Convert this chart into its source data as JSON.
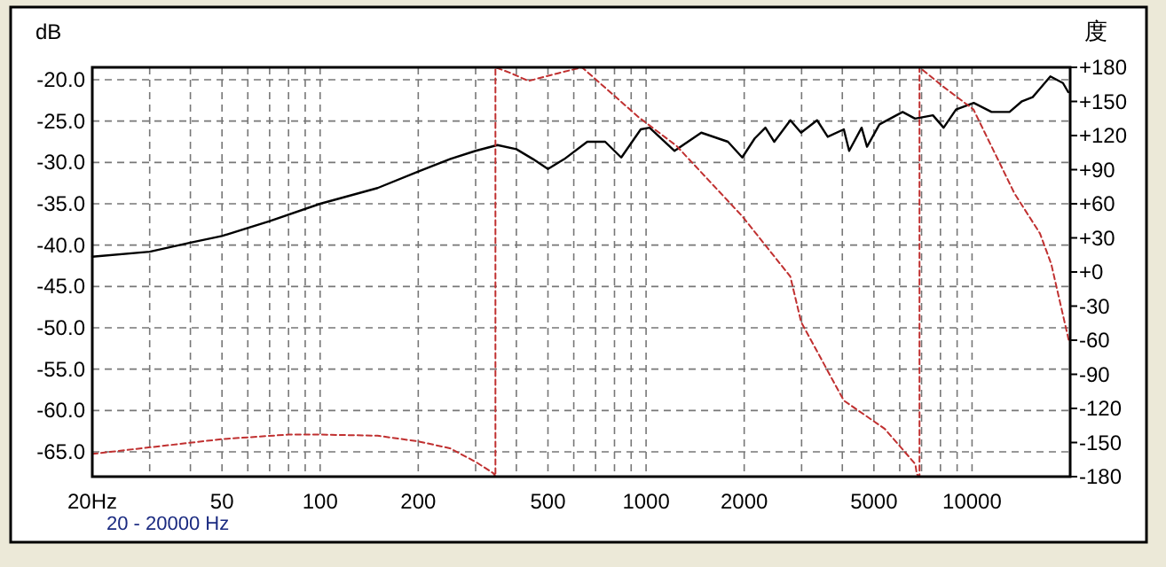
{
  "chart_data": {
    "type": "line",
    "ylabel": "dB",
    "y2label": "度",
    "log": "x",
    "grid": true,
    "xlim": [
      20,
      20000
    ],
    "ylim": [
      -68,
      -18.5
    ],
    "y2lim": [
      -180,
      180
    ],
    "xticks": [
      {
        "value": 20,
        "label": "20Hz"
      },
      {
        "value": 30,
        "label": null
      },
      {
        "value": 40,
        "label": null
      },
      50,
      {
        "value": 60,
        "label": null
      },
      {
        "value": 70,
        "label": null
      },
      {
        "value": 80,
        "label": null
      },
      {
        "value": 90,
        "label": null
      },
      100,
      200,
      {
        "value": 300,
        "label": null
      },
      {
        "value": 400,
        "label": null
      },
      500,
      {
        "value": 600,
        "label": null
      },
      {
        "value": 700,
        "label": null
      },
      {
        "value": 800,
        "label": null
      },
      {
        "value": 900,
        "label": null
      },
      1000,
      2000,
      {
        "value": 3000,
        "label": null
      },
      {
        "value": 4000,
        "label": null
      },
      5000,
      {
        "value": 6000,
        "label": null
      },
      {
        "value": 7000,
        "label": null
      },
      {
        "value": 8000,
        "label": null
      },
      {
        "value": 9000,
        "label": null
      },
      10000
    ],
    "yticks": [
      {
        "value": -20,
        "label": "-20.0"
      },
      {
        "value": -25,
        "label": "-25.0"
      },
      {
        "value": -30,
        "label": "-30.0"
      },
      {
        "value": -35,
        "label": "-35.0"
      },
      {
        "value": -40,
        "label": "-40.0"
      },
      {
        "value": -45,
        "label": "-45.0"
      },
      {
        "value": -50,
        "label": "-50.0"
      },
      {
        "value": -55,
        "label": "-55.0"
      },
      {
        "value": -60,
        "label": "-60.0"
      },
      {
        "value": -65,
        "label": "-65.0"
      }
    ],
    "y2ticks": [
      {
        "value": 180,
        "label": "+180"
      },
      {
        "value": 150,
        "label": "+150"
      },
      {
        "value": 120,
        "label": "+120"
      },
      {
        "value": 90,
        "label": "+90"
      },
      {
        "value": 60,
        "label": "+60"
      },
      {
        "value": 30,
        "label": "+30"
      },
      {
        "value": 0,
        "label": "+0"
      },
      -30,
      -60,
      -90,
      -120,
      -150,
      -180
    ],
    "annotations": [
      "20 - 20000 Hz"
    ],
    "series": [
      {
        "color": "#000000",
        "line_style": "solid",
        "x": [
          20,
          30,
          40,
          50,
          70,
          100,
          150,
          200,
          250,
          300,
          350,
          400,
          450,
          500,
          561,
          660,
          749,
          839,
          963,
          1025,
          1223,
          1477,
          1783,
          1973,
          2154,
          2323,
          2473,
          2771,
          2988,
          3347,
          3608,
          4042,
          4197,
          4584,
          4762,
          5200,
          5610,
          6124,
          6685,
          7586,
          8180,
          8930,
          10120,
          11480,
          13030,
          14230,
          15350,
          16140,
          17390,
          19010,
          19730
        ],
        "values": [
          -41.4,
          -40.8,
          -39.7,
          -38.9,
          -37.1,
          -35.0,
          -33.1,
          -31.1,
          -29.6,
          -28.6,
          -27.9,
          -28.4,
          -29.6,
          -30.8,
          -29.6,
          -27.5,
          -27.5,
          -29.4,
          -26.0,
          -25.8,
          -28.6,
          -26.4,
          -27.5,
          -29.4,
          -27.1,
          -25.8,
          -27.5,
          -24.9,
          -26.4,
          -24.9,
          -26.9,
          -26.0,
          -28.6,
          -25.8,
          -28.1,
          -25.4,
          -24.7,
          -23.9,
          -24.7,
          -24.3,
          -25.8,
          -23.6,
          -22.8,
          -23.9,
          -23.9,
          -22.6,
          -22.1,
          -21.1,
          -19.6,
          -20.4,
          -21.5
        ]
      },
      {
        "color": "#c03030",
        "line_style": "dashed",
        "axis": "y2",
        "x": [
          20,
          50,
          80,
          100,
          150,
          200,
          250,
          300,
          340,
          345,
          345,
          384,
          436,
          540,
          636,
          950,
          1239,
          1973,
          2770,
          2990,
          4040,
          5400,
          6700,
          6770,
          6900,
          6900,
          8160,
          10100,
          13500,
          16150,
          17500,
          19800
        ],
        "values": [
          -160,
          -147,
          -143,
          -143,
          -144,
          -149,
          -155,
          -167,
          -177,
          -180,
          180,
          175,
          168,
          175,
          180,
          136,
          111,
          49,
          -4,
          -44,
          -113,
          -138,
          -169,
          -178,
          -180,
          180,
          163,
          143,
          69,
          34,
          7,
          -60
        ]
      }
    ]
  }
}
